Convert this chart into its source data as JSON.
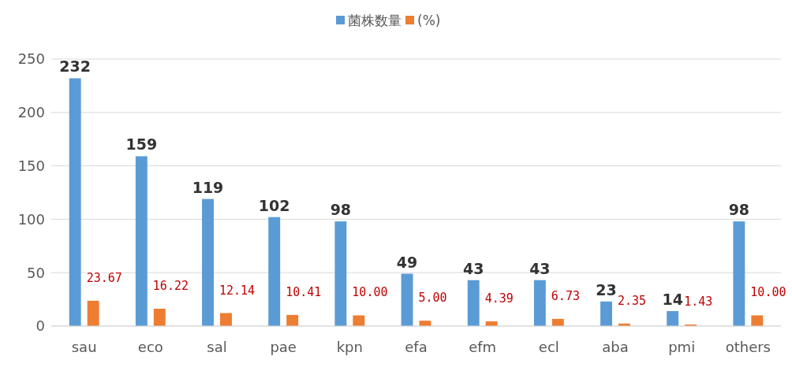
{
  "chart_data": {
    "type": "bar",
    "categories": [
      "sau",
      "eco",
      "sal",
      "pae",
      "kpn",
      "efa",
      "efm",
      "ecl",
      "aba",
      "pmi",
      "others"
    ],
    "series": [
      {
        "name": "菌株数量",
        "color": "#5b9bd5",
        "values": [
          232,
          159,
          119,
          102,
          98,
          49,
          43,
          43,
          23,
          14,
          98
        ],
        "value_labels": [
          "232",
          "159",
          "119",
          "102",
          "98",
          "49",
          "43",
          "43",
          "23",
          "14",
          "98"
        ]
      },
      {
        "name": "(%)",
        "color": "#ed7d31",
        "values": [
          23.67,
          16.22,
          12.14,
          10.41,
          10.0,
          5.0,
          4.39,
          6.73,
          2.35,
          1.43,
          10.0
        ],
        "value_labels": [
          "23.67",
          "16.22",
          "12.14",
          "10.41",
          "10.00",
          "5.00",
          "4.39",
          "6.73",
          "2.35",
          "1.43",
          "10.00"
        ]
      }
    ],
    "ylim": [
      0,
      250
    ],
    "yticks": [
      0,
      50,
      100,
      150,
      200,
      250
    ],
    "grid": "y",
    "legend": "top"
  }
}
